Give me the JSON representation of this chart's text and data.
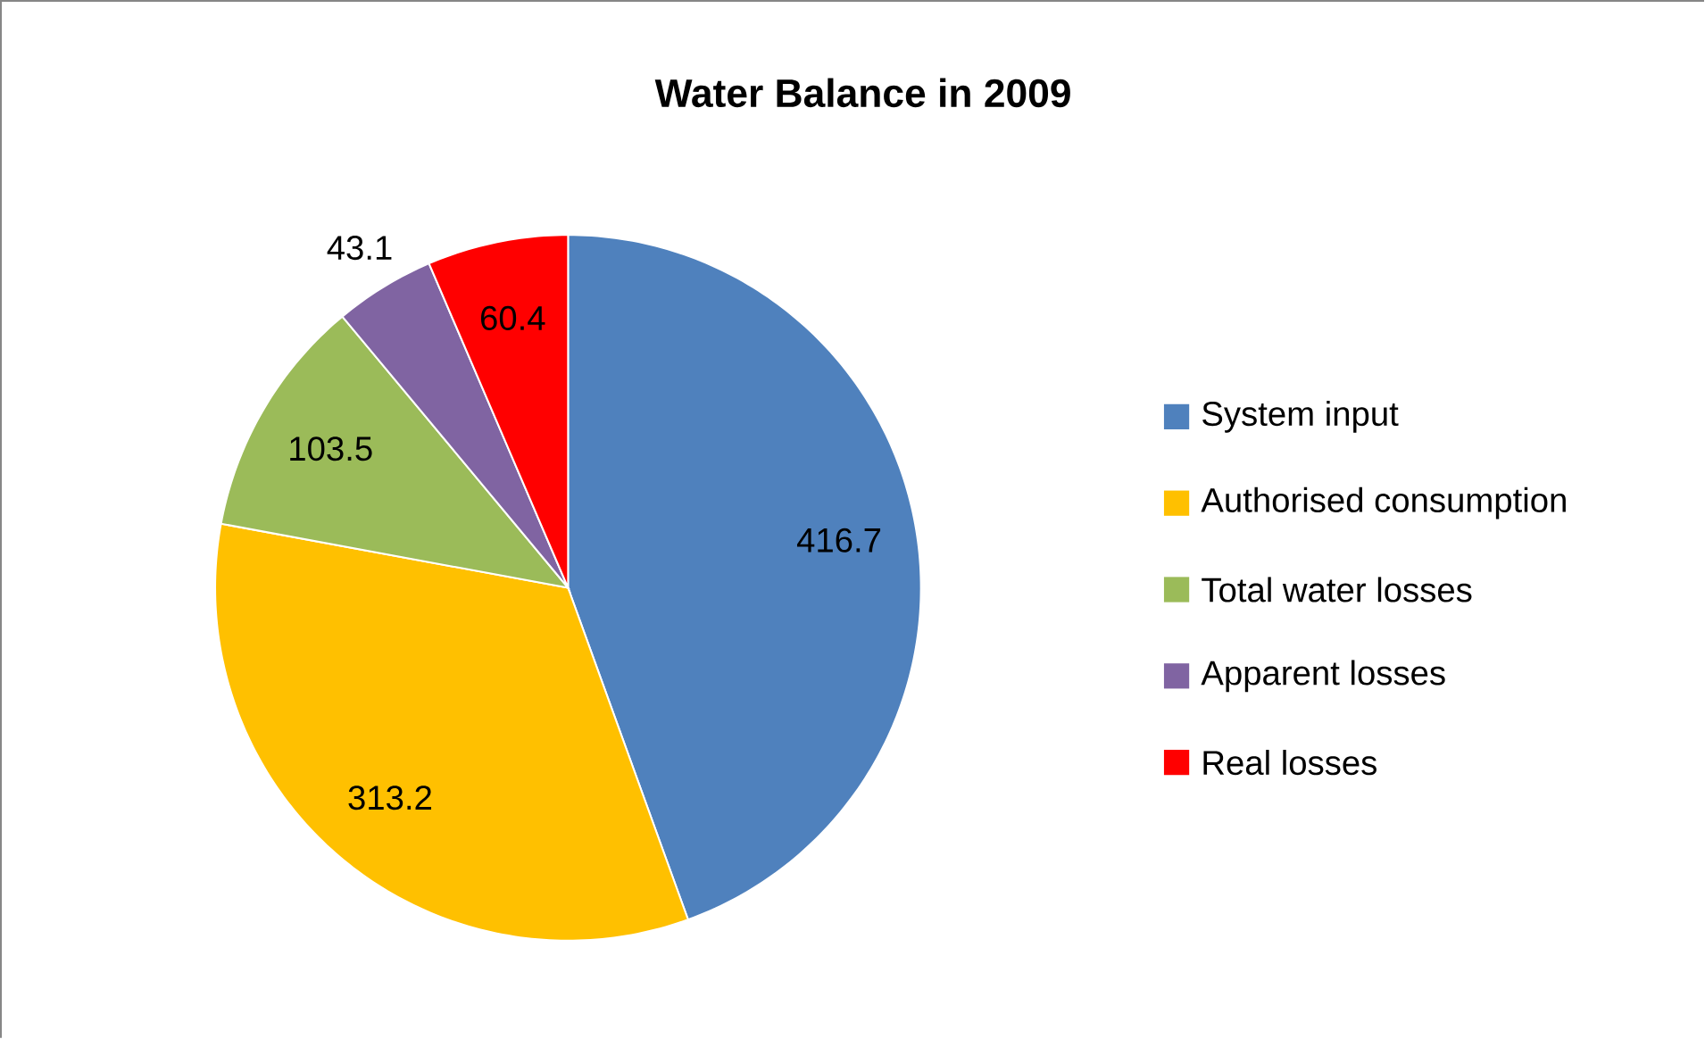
{
  "chart_data": {
    "type": "pie",
    "title": "Water Balance in 2009",
    "categories": [
      "System input",
      "Authorised consumption",
      "Total water losses",
      "Apparent losses",
      "Real losses"
    ],
    "values": [
      416.7,
      313.2,
      103.5,
      43.1,
      60.4
    ],
    "colors": [
      "#4f81bd",
      "#ffc000",
      "#9bbb59",
      "#8064a2",
      "#ff0000"
    ],
    "data_labels": true,
    "legend": "right"
  }
}
